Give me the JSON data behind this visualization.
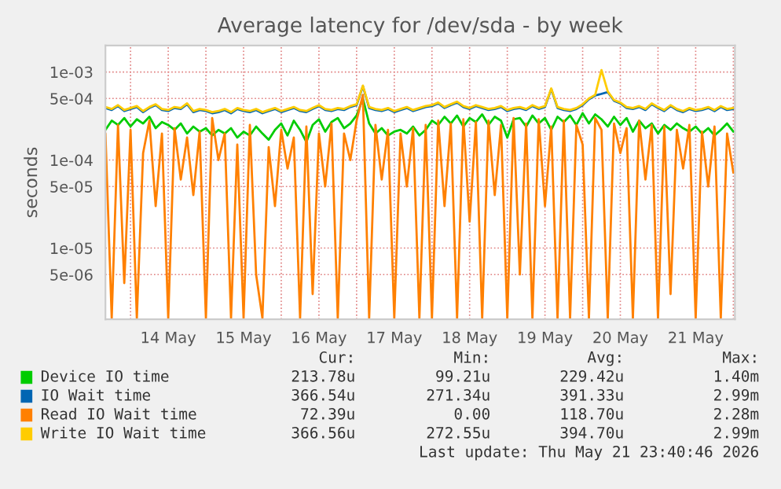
{
  "chart_data": {
    "type": "line",
    "title": "Average latency for /dev/sda - by week",
    "ylabel": "seconds",
    "log": "y",
    "grid": true,
    "legend": "bottom",
    "xlim": [
      "2026-05-13T16:00",
      "2026-05-22T00:30"
    ],
    "xticks": [
      {
        "value": "2026-05-14T00:00",
        "label": null
      },
      {
        "value": "2026-05-14T12:00",
        "label": "14 May"
      },
      {
        "value": "2026-05-15T00:00",
        "label": null
      },
      {
        "value": "2026-05-15T12:00",
        "label": "15 May"
      },
      {
        "value": "2026-05-16T00:00",
        "label": null
      },
      {
        "value": "2026-05-16T12:00",
        "label": "16 May"
      },
      {
        "value": "2026-05-17T00:00",
        "label": null
      },
      {
        "value": "2026-05-17T12:00",
        "label": "17 May"
      },
      {
        "value": "2026-05-18T00:00",
        "label": null
      },
      {
        "value": "2026-05-18T12:00",
        "label": "18 May"
      },
      {
        "value": "2026-05-19T00:00",
        "label": null
      },
      {
        "value": "2026-05-19T12:00",
        "label": "19 May"
      },
      {
        "value": "2026-05-20T00:00",
        "label": null
      },
      {
        "value": "2026-05-20T12:00",
        "label": "20 May"
      },
      {
        "value": "2026-05-21T00:00",
        "label": null
      },
      {
        "value": "2026-05-21T12:00",
        "label": "21 May"
      },
      {
        "value": "2026-05-22T00:00",
        "label": null
      }
    ],
    "ylim": [
      1.55e-06,
      0.002
    ],
    "yticks": [
      {
        "value": 5e-06,
        "label": "5e-06"
      },
      {
        "value": 1e-05,
        "label": "1e-05"
      },
      {
        "value": 5e-05,
        "label": "5e-05"
      },
      {
        "value": 0.0001,
        "label": "1e-04"
      },
      {
        "value": 0.0005,
        "label": "5e-04"
      },
      {
        "value": 0.001,
        "label": "1e-03"
      }
    ],
    "x": [
      "2026-05-13T16:00",
      "2026-05-13T18:00",
      "2026-05-13T20:00",
      "2026-05-13T22:00",
      "2026-05-14T00:00",
      "2026-05-14T02:00",
      "2026-05-14T04:00",
      "2026-05-14T06:00",
      "2026-05-14T08:00",
      "2026-05-14T10:00",
      "2026-05-14T12:00",
      "2026-05-14T14:00",
      "2026-05-14T16:00",
      "2026-05-14T18:00",
      "2026-05-14T20:00",
      "2026-05-14T22:00",
      "2026-05-15T00:00",
      "2026-05-15T02:00",
      "2026-05-15T04:00",
      "2026-05-15T06:00",
      "2026-05-15T08:00",
      "2026-05-15T10:00",
      "2026-05-15T12:00",
      "2026-05-15T14:00",
      "2026-05-15T16:00",
      "2026-05-15T18:00",
      "2026-05-15T20:00",
      "2026-05-15T22:00",
      "2026-05-16T00:00",
      "2026-05-16T02:00",
      "2026-05-16T04:00",
      "2026-05-16T06:00",
      "2026-05-16T08:00",
      "2026-05-16T10:00",
      "2026-05-16T12:00",
      "2026-05-16T14:00",
      "2026-05-16T16:00",
      "2026-05-16T18:00",
      "2026-05-16T20:00",
      "2026-05-16T22:00",
      "2026-05-17T00:00",
      "2026-05-17T02:00",
      "2026-05-17T04:00",
      "2026-05-17T06:00",
      "2026-05-17T08:00",
      "2026-05-17T10:00",
      "2026-05-17T12:00",
      "2026-05-17T14:00",
      "2026-05-17T16:00",
      "2026-05-17T18:00",
      "2026-05-17T20:00",
      "2026-05-17T22:00",
      "2026-05-18T00:00",
      "2026-05-18T02:00",
      "2026-05-18T04:00",
      "2026-05-18T06:00",
      "2026-05-18T08:00",
      "2026-05-18T10:00",
      "2026-05-18T12:00",
      "2026-05-18T14:00",
      "2026-05-18T16:00",
      "2026-05-18T18:00",
      "2026-05-18T20:00",
      "2026-05-18T22:00",
      "2026-05-19T00:00",
      "2026-05-19T02:00",
      "2026-05-19T04:00",
      "2026-05-19T06:00",
      "2026-05-19T08:00",
      "2026-05-19T10:00",
      "2026-05-19T12:00",
      "2026-05-19T14:00",
      "2026-05-19T16:00",
      "2026-05-19T18:00",
      "2026-05-19T20:00",
      "2026-05-19T22:00",
      "2026-05-20T00:00",
      "2026-05-20T02:00",
      "2026-05-20T04:00",
      "2026-05-20T06:00",
      "2026-05-20T08:00",
      "2026-05-20T10:00",
      "2026-05-20T12:00",
      "2026-05-20T14:00",
      "2026-05-20T16:00",
      "2026-05-20T18:00",
      "2026-05-20T20:00",
      "2026-05-20T22:00",
      "2026-05-21T00:00",
      "2026-05-21T02:00",
      "2026-05-21T04:00",
      "2026-05-21T06:00",
      "2026-05-21T08:00",
      "2026-05-21T10:00",
      "2026-05-21T12:00",
      "2026-05-21T14:00",
      "2026-05-21T16:00",
      "2026-05-21T18:00",
      "2026-05-21T20:00",
      "2026-05-21T22:00",
      "2026-05-22T00:00"
    ],
    "series": [
      {
        "name": "Device IO time",
        "color": "#00cc00",
        "values": [
          0.00022,
          0.00028,
          0.00025,
          0.0003,
          0.00024,
          0.00029,
          0.00026,
          0.00031,
          0.00023,
          0.00027,
          0.00025,
          0.00022,
          0.00026,
          0.0002,
          0.00024,
          0.00021,
          0.00023,
          0.00019,
          0.00022,
          0.0002,
          0.00023,
          0.00018,
          0.00021,
          0.00019,
          0.00024,
          0.0002,
          0.00017,
          0.00022,
          0.00026,
          0.00019,
          0.00028,
          0.00022,
          0.00016,
          0.00025,
          0.00029,
          0.00021,
          0.00027,
          0.0003,
          0.00023,
          0.00026,
          0.00032,
          0.0005,
          0.00026,
          0.0002,
          0.00023,
          0.00019,
          0.00021,
          0.00022,
          0.0002,
          0.00024,
          0.00019,
          0.00022,
          0.00028,
          0.00025,
          0.00031,
          0.00026,
          0.00032,
          0.00024,
          0.0003,
          0.00027,
          0.00033,
          0.00025,
          0.00031,
          0.00028,
          0.00018,
          0.00029,
          0.0003,
          0.00024,
          0.00032,
          0.00026,
          0.0003,
          0.00022,
          0.00031,
          0.00027,
          0.00032,
          0.00025,
          0.00034,
          0.00026,
          0.00033,
          0.00029,
          0.00024,
          0.00031,
          0.00025,
          0.0003,
          0.00021,
          0.00028,
          0.00023,
          0.00026,
          0.0002,
          0.00025,
          0.00022,
          0.00026,
          0.00023,
          0.00021,
          0.00024,
          0.0002,
          0.00023,
          0.00019,
          0.00022,
          0.00026,
          0.00021
        ]
      },
      {
        "name": "IO Wait time",
        "color": "#0066b3",
        "values": [
          0.00039,
          0.00037,
          0.00041,
          0.00036,
          0.00038,
          0.0004,
          0.00035,
          0.00039,
          0.00042,
          0.00037,
          0.00036,
          0.00039,
          0.00038,
          0.00043,
          0.00035,
          0.00037,
          0.00036,
          0.00034,
          0.00035,
          0.00037,
          0.00034,
          0.00038,
          0.00036,
          0.00035,
          0.00037,
          0.00034,
          0.00036,
          0.00038,
          0.00035,
          0.00037,
          0.00039,
          0.00036,
          0.00035,
          0.00038,
          0.00041,
          0.00037,
          0.00036,
          0.00038,
          0.00037,
          0.0004,
          0.00042,
          0.00069,
          0.00039,
          0.00037,
          0.00036,
          0.00038,
          0.00035,
          0.00037,
          0.00039,
          0.00036,
          0.00038,
          0.0004,
          0.00041,
          0.00044,
          0.00039,
          0.00042,
          0.00045,
          0.0004,
          0.00038,
          0.00041,
          0.00039,
          0.00037,
          0.00038,
          0.0004,
          0.00036,
          0.00038,
          0.00039,
          0.00037,
          0.00041,
          0.00038,
          0.0004,
          0.00064,
          0.00039,
          0.00037,
          0.00036,
          0.00038,
          0.00042,
          0.00049,
          0.00054,
          null,
          0.00059,
          0.00047,
          0.00044,
          0.00039,
          0.00038,
          0.0004,
          0.00037,
          0.00043,
          0.00039,
          0.00036,
          0.00041,
          0.00037,
          0.00035,
          0.00038,
          0.00036,
          0.00037,
          0.00039,
          0.00036,
          0.0004,
          0.00037,
          0.00038
        ]
      },
      {
        "name": "Read IO Wait time",
        "color": "#ff8000",
        "values": [
          0.0002,
          1.6e-06,
          0.00025,
          4e-06,
          0.00022,
          1.6e-06,
          0.00012,
          0.00028,
          3e-05,
          0.0002,
          1.6e-06,
          0.00023,
          6e-05,
          0.00018,
          4e-05,
          0.00021,
          1.6e-06,
          0.0003,
          0.0001,
          0.0002,
          1.6e-06,
          0.00015,
          1.6e-06,
          0.00025,
          5e-06,
          1.6e-06,
          0.00014,
          3e-05,
          0.00022,
          8e-05,
          0.00018,
          1.6e-06,
          0.00024,
          3e-06,
          0.0002,
          5e-05,
          0.00026,
          1.6e-06,
          0.0002,
          0.0001,
          0.00028,
          0.00055,
          1.6e-06,
          0.00025,
          6e-05,
          0.00022,
          1.6e-06,
          0.0002,
          5e-05,
          0.00023,
          1.6e-06,
          0.00025,
          1.6e-06,
          0.00028,
          3e-05,
          0.00026,
          1.6e-06,
          0.00029,
          2e-05,
          0.00027,
          1.6e-06,
          0.00028,
          4e-05,
          0.00025,
          1.6e-06,
          0.0003,
          5e-06,
          0.00026,
          1.6e-06,
          0.00029,
          3e-05,
          0.00024,
          1.6e-06,
          0.00028,
          1.6e-06,
          0.00025,
          0.00015,
          1.6e-06,
          0.0003,
          0.00022,
          1.6e-06,
          0.00026,
          0.00012,
          0.00023,
          1.6e-06,
          0.00028,
          6e-05,
          0.00025,
          1.6e-06,
          0.00024,
          3e-06,
          0.00022,
          8e-05,
          0.00025,
          1.6e-06,
          0.00021,
          5e-05,
          0.00024,
          1.6e-06,
          0.0002,
          7.2e-05
        ]
      },
      {
        "name": "Write IO Wait time",
        "color": "#ffcc00",
        "values": [
          0.0004,
          0.00038,
          0.00042,
          0.00037,
          0.00039,
          0.00041,
          0.00036,
          0.0004,
          0.00043,
          0.00038,
          0.00037,
          0.0004,
          0.00039,
          0.00044,
          0.00036,
          0.00038,
          0.00037,
          0.00035,
          0.00036,
          0.00038,
          0.00035,
          0.00039,
          0.00037,
          0.00036,
          0.00038,
          0.00035,
          0.00037,
          0.00039,
          0.00036,
          0.00038,
          0.0004,
          0.00037,
          0.00036,
          0.00039,
          0.00042,
          0.00038,
          0.00037,
          0.00039,
          0.00038,
          0.00041,
          0.00043,
          0.0007,
          0.0004,
          0.00038,
          0.00037,
          0.00039,
          0.00036,
          0.00038,
          0.0004,
          0.00037,
          0.00039,
          0.00041,
          0.00042,
          0.00045,
          0.0004,
          0.00043,
          0.00046,
          0.00041,
          0.00039,
          0.00042,
          0.0004,
          0.00038,
          0.00039,
          0.00041,
          0.00037,
          0.00039,
          0.0004,
          0.00038,
          0.00042,
          0.00039,
          0.00041,
          0.00065,
          0.0004,
          0.00038,
          0.00037,
          0.00039,
          0.00043,
          0.0005,
          0.00055,
          0.00105,
          0.0006,
          0.00048,
          0.00045,
          0.0004,
          0.00039,
          0.00041,
          0.00038,
          0.00044,
          0.0004,
          0.00037,
          0.00042,
          0.00038,
          0.00036,
          0.00039,
          0.00037,
          0.00038,
          0.0004,
          0.00037,
          0.00041,
          0.00038,
          0.00039
        ]
      }
    ],
    "annotations": [
      "Cur:",
      "Min:",
      "Avg:",
      "Max:",
      "213.78u",
      "99.21u",
      "229.42u",
      "1.40m",
      "366.54u",
      "271.34u",
      "391.33u",
      "2.99m",
      "72.39u",
      "0.00",
      "118.70u",
      "2.28m",
      "366.56u",
      "272.55u",
      "394.70u",
      "2.99m",
      "Last update: Thu May 21 23:40:46 2026"
    ]
  }
}
